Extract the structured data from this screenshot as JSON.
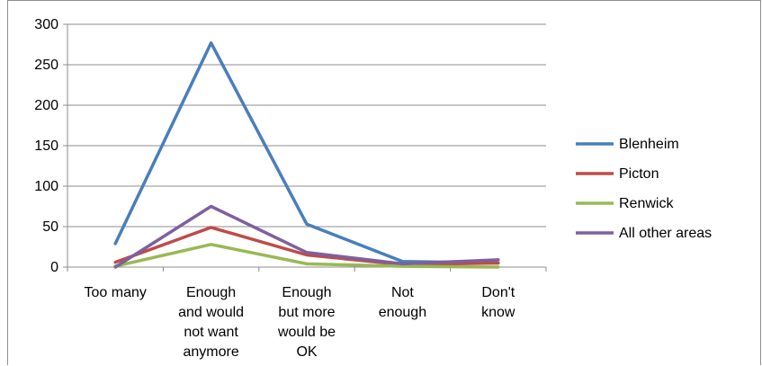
{
  "chart_data": {
    "type": "line",
    "title": "",
    "xlabel": "",
    "ylabel": "",
    "ylim": [
      0,
      300
    ],
    "yticks": [
      0,
      50,
      100,
      150,
      200,
      250,
      300
    ],
    "ytick_labels": [
      "0",
      "50",
      "100",
      "150",
      "200",
      "250",
      "300"
    ],
    "grid": true,
    "legend_position": "right",
    "categories": [
      [
        "Too many"
      ],
      [
        "Enough",
        "and would",
        "not want",
        "anymore"
      ],
      [
        "Enough",
        "but more",
        "would be",
        "OK"
      ],
      [
        "Not",
        "enough"
      ],
      [
        "Don't",
        "know"
      ]
    ],
    "series": [
      {
        "name": "Blenheim",
        "color": "#4a7ebb",
        "values": [
          29,
          277,
          53,
          7,
          5
        ]
      },
      {
        "name": "Picton",
        "color": "#be4b48",
        "values": [
          6,
          49,
          15,
          3,
          5
        ]
      },
      {
        "name": "Renwick",
        "color": "#98b954",
        "values": [
          1,
          28,
          4,
          1,
          0
        ]
      },
      {
        "name": "All other areas",
        "color": "#7d60a0",
        "values": [
          0,
          75,
          18,
          4,
          9
        ]
      }
    ]
  }
}
